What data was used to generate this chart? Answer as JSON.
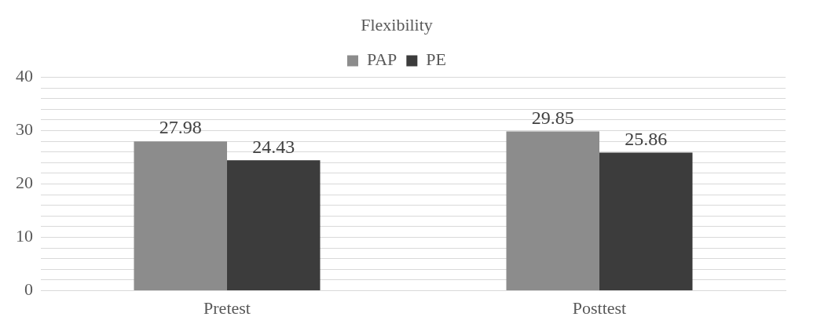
{
  "chart_data": {
    "type": "bar",
    "title": "Flexibility",
    "categories": [
      "Pretest",
      "Posttest"
    ],
    "series": [
      {
        "name": "PAP",
        "color": "#8c8c8c",
        "values": [
          27.98,
          29.85
        ]
      },
      {
        "name": "PE",
        "color": "#3c3c3c",
        "values": [
          24.43,
          25.86
        ]
      }
    ],
    "ylim": [
      0,
      40
    ],
    "yticks": [
      0,
      {
        "value": 2,
        "label": null
      },
      {
        "value": 4,
        "label": null
      },
      {
        "value": 6,
        "label": null
      },
      {
        "value": 8,
        "label": null
      },
      10,
      {
        "value": 12,
        "label": null
      },
      {
        "value": 14,
        "label": null
      },
      {
        "value": 16,
        "label": null
      },
      {
        "value": 18,
        "label": null
      },
      20,
      {
        "value": 22,
        "label": null
      },
      {
        "value": 24,
        "label": null
      },
      {
        "value": 26,
        "label": null
      },
      {
        "value": 28,
        "label": null
      },
      30,
      {
        "value": 32,
        "label": null
      },
      {
        "value": 34,
        "label": null
      },
      {
        "value": 36,
        "label": null
      },
      {
        "value": 38,
        "label": null
      },
      40
    ],
    "grid": "y",
    "legend": "top",
    "data_labels": true
  }
}
